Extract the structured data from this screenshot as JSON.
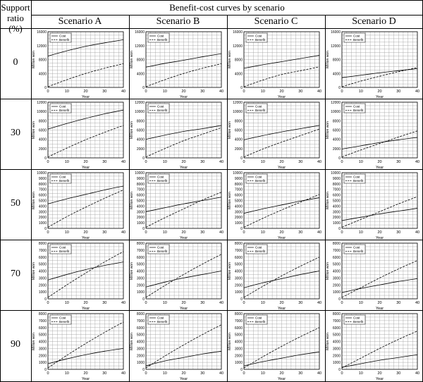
{
  "header": {
    "row_label_line1": "Support",
    "row_label_line2": "ratio (%)",
    "title": "Benefit-cost curves by scenario",
    "scenarios": [
      "Scenario A",
      "Scenario B",
      "Scenario C",
      "Scenario D"
    ]
  },
  "rows": [
    {
      "ratio": "0"
    },
    {
      "ratio": "30"
    },
    {
      "ratio": "50"
    },
    {
      "ratio": "70"
    },
    {
      "ratio": "90"
    }
  ],
  "axis_labels": {
    "xlabel": "Year",
    "ylabel": "Million won"
  },
  "legend": {
    "cost": "Cost",
    "benefit": "Benefit"
  },
  "colors": {
    "line": "#000000",
    "grid": "#9a9a9a",
    "border": "#000000"
  },
  "chart_data": [
    {
      "type": "line",
      "row": "0",
      "scenario": "Scenario A",
      "xlim": [
        0,
        40
      ],
      "ylim": [
        0,
        16000
      ],
      "x": [
        0,
        10,
        20,
        30,
        40
      ],
      "series": [
        {
          "name": "Cost",
          "values": [
            9000,
            10500,
            11800,
            12800,
            13700
          ]
        },
        {
          "name": "Benefit",
          "values": [
            200,
            2200,
            4000,
            5500,
            6800
          ]
        }
      ],
      "xticks": [
        "0",
        "10",
        "20",
        "30",
        "40"
      ],
      "yticks": [
        "0",
        "4000",
        "8000",
        "12000",
        "16000"
      ],
      "legend": "top-left"
    },
    {
      "type": "line",
      "row": "0",
      "scenario": "Scenario B",
      "xlim": [
        0,
        40
      ],
      "ylim": [
        0,
        16000
      ],
      "x": [
        0,
        10,
        20,
        30,
        40
      ],
      "series": [
        {
          "name": "Cost",
          "values": [
            5800,
            6900,
            7800,
            8800,
            9700
          ]
        },
        {
          "name": "Benefit",
          "values": [
            200,
            2200,
            4000,
            5500,
            6800
          ]
        }
      ],
      "xticks": [
        "0",
        "10",
        "20",
        "30",
        "40"
      ],
      "yticks": [
        "0",
        "4000",
        "8000",
        "12000",
        "16000"
      ],
      "legend": "top-left"
    },
    {
      "type": "line",
      "row": "0",
      "scenario": "Scenario C",
      "xlim": [
        0,
        40
      ],
      "ylim": [
        0,
        16000
      ],
      "x": [
        0,
        10,
        20,
        30,
        40
      ],
      "series": [
        {
          "name": "Cost",
          "values": [
            5500,
            6500,
            7400,
            8300,
            9200
          ]
        },
        {
          "name": "Benefit",
          "values": [
            200,
            2100,
            3700,
            4800,
            5900
          ]
        }
      ],
      "xticks": [
        "0",
        "10",
        "20",
        "30",
        "40"
      ],
      "yticks": [
        "0",
        "4000",
        "8000",
        "12000",
        "16000"
      ],
      "legend": "top-left"
    },
    {
      "type": "line",
      "row": "0",
      "scenario": "Scenario D",
      "xlim": [
        0,
        40
      ],
      "ylim": [
        0,
        16000
      ],
      "x": [
        0,
        10,
        20,
        30,
        40
      ],
      "series": [
        {
          "name": "Cost",
          "values": [
            2800,
            3500,
            4200,
            4800,
            5400
          ]
        },
        {
          "name": "Benefit",
          "values": [
            200,
            1800,
            3200,
            4500,
            5700
          ]
        }
      ],
      "xticks": [
        "0",
        "10",
        "20",
        "30",
        "40"
      ],
      "yticks": [
        "0",
        "4000",
        "8000",
        "12000",
        "16000"
      ],
      "legend": "top-left"
    },
    {
      "type": "line",
      "row": "30",
      "scenario": "Scenario A",
      "xlim": [
        0,
        40
      ],
      "ylim": [
        0,
        12000
      ],
      "x": [
        0,
        10,
        20,
        30,
        40
      ],
      "series": [
        {
          "name": "Cost",
          "values": [
            6200,
            7400,
            8500,
            9500,
            10300
          ]
        },
        {
          "name": "Benefit",
          "values": [
            200,
            2100,
            3900,
            5500,
            7000
          ]
        }
      ],
      "xticks": [
        "0",
        "10",
        "20",
        "30",
        "40"
      ],
      "yticks": [
        "0",
        "2000",
        "4000",
        "6000",
        "8000",
        "10000",
        "12000"
      ],
      "legend": "top-left"
    },
    {
      "type": "line",
      "row": "30",
      "scenario": "Scenario B",
      "xlim": [
        0,
        40
      ],
      "ylim": [
        0,
        12000
      ],
      "x": [
        0,
        10,
        20,
        30,
        40
      ],
      "series": [
        {
          "name": "Cost",
          "values": [
            4000,
            4900,
            5700,
            6300,
            7000
          ]
        },
        {
          "name": "Benefit",
          "values": [
            200,
            2000,
            3700,
            5100,
            6500
          ]
        }
      ],
      "xticks": [
        "0",
        "10",
        "20",
        "30",
        "40"
      ],
      "yticks": [
        "0",
        "2000",
        "4000",
        "6000",
        "8000",
        "10000",
        "12000"
      ],
      "legend": "top-left"
    },
    {
      "type": "line",
      "row": "30",
      "scenario": "Scenario C",
      "xlim": [
        0,
        40
      ],
      "ylim": [
        0,
        12000
      ],
      "x": [
        0,
        10,
        20,
        30,
        40
      ],
      "series": [
        {
          "name": "Cost",
          "values": [
            3900,
            4800,
            5600,
            6300,
            7000
          ]
        },
        {
          "name": "Benefit",
          "values": [
            200,
            1900,
            3400,
            4800,
            6200
          ]
        }
      ],
      "xticks": [
        "0",
        "10",
        "20",
        "30",
        "40"
      ],
      "yticks": [
        "0",
        "2000",
        "4000",
        "6000",
        "8000",
        "10000",
        "12000"
      ],
      "legend": "top-left"
    },
    {
      "type": "line",
      "row": "30",
      "scenario": "Scenario D",
      "xlim": [
        0,
        40
      ],
      "ylim": [
        0,
        12000
      ],
      "x": [
        0,
        10,
        20,
        30,
        40
      ],
      "series": [
        {
          "name": "Cost",
          "values": [
            1900,
            2600,
            3300,
            3900,
            4400
          ]
        },
        {
          "name": "Benefit",
          "values": [
            200,
            1700,
            3100,
            4500,
            5800
          ]
        }
      ],
      "xticks": [
        "0",
        "10",
        "20",
        "30",
        "40"
      ],
      "yticks": [
        "0",
        "2000",
        "4000",
        "6000",
        "8000",
        "10000",
        "12000"
      ],
      "legend": "top-left"
    },
    {
      "type": "line",
      "row": "50",
      "scenario": "Scenario A",
      "xlim": [
        0,
        40
      ],
      "ylim": [
        0,
        10000
      ],
      "x": [
        0,
        10,
        20,
        30,
        40
      ],
      "series": [
        {
          "name": "Cost",
          "values": [
            4400,
            5300,
            6100,
            6900,
            7600
          ]
        },
        {
          "name": "Benefit",
          "values": [
            200,
            2100,
            3800,
            5400,
            6900
          ]
        }
      ],
      "xticks": [
        "0",
        "10",
        "20",
        "30",
        "40"
      ],
      "yticks": [
        "0",
        "1000",
        "2000",
        "3000",
        "4000",
        "5000",
        "6000",
        "7000",
        "8000",
        "9000",
        "10000"
      ],
      "legend": "top-left"
    },
    {
      "type": "line",
      "row": "50",
      "scenario": "Scenario B",
      "xlim": [
        0,
        40
      ],
      "ylim": [
        0,
        10000
      ],
      "x": [
        0,
        10,
        20,
        30,
        40
      ],
      "series": [
        {
          "name": "Cost",
          "values": [
            3000,
            3700,
            4400,
            5000,
            5600
          ]
        },
        {
          "name": "Benefit",
          "values": [
            200,
            1900,
            3500,
            5100,
            6500
          ]
        }
      ],
      "xticks": [
        "0",
        "10",
        "20",
        "30",
        "40"
      ],
      "yticks": [
        "0",
        "1000",
        "2000",
        "3000",
        "4000",
        "5000",
        "6000",
        "7000",
        "8000",
        "9000",
        "10000"
      ],
      "legend": "top-left"
    },
    {
      "type": "line",
      "row": "50",
      "scenario": "Scenario C",
      "xlim": [
        0,
        40
      ],
      "ylim": [
        0,
        10000
      ],
      "x": [
        0,
        10,
        20,
        30,
        40
      ],
      "series": [
        {
          "name": "Cost",
          "values": [
            2700,
            3500,
            4200,
            4900,
            5500
          ]
        },
        {
          "name": "Benefit",
          "values": [
            200,
            1800,
            3300,
            4700,
            6100
          ]
        }
      ],
      "xticks": [
        "0",
        "10",
        "20",
        "30",
        "40"
      ],
      "yticks": [
        "0",
        "1000",
        "2000",
        "3000",
        "4000",
        "5000",
        "6000",
        "7000",
        "8000",
        "9000",
        "10000"
      ],
      "legend": "top-left"
    },
    {
      "type": "line",
      "row": "50",
      "scenario": "Scenario D",
      "xlim": [
        0,
        40
      ],
      "ylim": [
        0,
        10000
      ],
      "x": [
        0,
        10,
        20,
        30,
        40
      ],
      "series": [
        {
          "name": "Cost",
          "values": [
            1400,
            2000,
            2600,
            3100,
            3600
          ]
        },
        {
          "name": "Benefit",
          "values": [
            200,
            1600,
            3000,
            4400,
            5700
          ]
        }
      ],
      "xticks": [
        "0",
        "10",
        "20",
        "30",
        "40"
      ],
      "yticks": [
        "0",
        "1000",
        "2000",
        "3000",
        "4000",
        "5000",
        "6000",
        "7000",
        "8000",
        "9000",
        "10000"
      ],
      "legend": "top-left"
    },
    {
      "type": "line",
      "row": "70",
      "scenario": "Scenario A",
      "xlim": [
        0,
        40
      ],
      "ylim": [
        0,
        8000
      ],
      "x": [
        0,
        10,
        20,
        30,
        40
      ],
      "series": [
        {
          "name": "Cost",
          "values": [
            2700,
            3500,
            4200,
            4800,
            5300
          ]
        },
        {
          "name": "Benefit",
          "values": [
            200,
            2000,
            3700,
            5300,
            6800
          ]
        }
      ],
      "xticks": [
        "0",
        "10",
        "20",
        "30",
        "40"
      ],
      "yticks": [
        "0",
        "1000",
        "2000",
        "3000",
        "4000",
        "5000",
        "6000",
        "7000",
        "8000"
      ],
      "legend": "top-left"
    },
    {
      "type": "line",
      "row": "70",
      "scenario": "Scenario B",
      "xlim": [
        0,
        40
      ],
      "ylim": [
        0,
        8000
      ],
      "x": [
        0,
        10,
        20,
        30,
        40
      ],
      "series": [
        {
          "name": "Cost",
          "values": [
            1700,
            2400,
            3000,
            3500,
            4000
          ]
        },
        {
          "name": "Benefit",
          "values": [
            200,
            1900,
            3500,
            5000,
            6400
          ]
        }
      ],
      "xticks": [
        "0",
        "10",
        "20",
        "30",
        "40"
      ],
      "yticks": [
        "0",
        "1000",
        "2000",
        "3000",
        "4000",
        "5000",
        "6000",
        "7000",
        "8000"
      ],
      "legend": "top-left"
    },
    {
      "type": "line",
      "row": "70",
      "scenario": "Scenario C",
      "xlim": [
        0,
        40
      ],
      "ylim": [
        0,
        8000
      ],
      "x": [
        0,
        10,
        20,
        30,
        40
      ],
      "series": [
        {
          "name": "Cost",
          "values": [
            1600,
            2300,
            2900,
            3500,
            4000
          ]
        },
        {
          "name": "Benefit",
          "values": [
            200,
            1800,
            3300,
            4700,
            6000
          ]
        }
      ],
      "xticks": [
        "0",
        "10",
        "20",
        "30",
        "40"
      ],
      "yticks": [
        "0",
        "1000",
        "2000",
        "3000",
        "4000",
        "5000",
        "6000",
        "7000",
        "8000"
      ],
      "legend": "top-left"
    },
    {
      "type": "line",
      "row": "70",
      "scenario": "Scenario D",
      "xlim": [
        0,
        40
      ],
      "ylim": [
        0,
        8000
      ],
      "x": [
        0,
        10,
        20,
        30,
        40
      ],
      "series": [
        {
          "name": "Cost",
          "values": [
            900,
            1500,
            2000,
            2500,
            2900
          ]
        },
        {
          "name": "Benefit",
          "values": [
            200,
            1600,
            3000,
            4300,
            5500
          ]
        }
      ],
      "xticks": [
        "0",
        "10",
        "20",
        "30",
        "40"
      ],
      "yticks": [
        "0",
        "1000",
        "2000",
        "3000",
        "4000",
        "5000",
        "6000",
        "7000",
        "8000"
      ],
      "legend": "top-left"
    },
    {
      "type": "line",
      "row": "90",
      "scenario": "Scenario A",
      "xlim": [
        0,
        40
      ],
      "ylim": [
        0,
        8000
      ],
      "x": [
        0,
        10,
        20,
        30,
        40
      ],
      "series": [
        {
          "name": "Cost",
          "values": [
            800,
            1500,
            2100,
            2600,
            3000
          ]
        },
        {
          "name": "Benefit",
          "values": [
            200,
            2000,
            3700,
            5300,
            6800
          ]
        }
      ],
      "xticks": [
        "0",
        "10",
        "20",
        "30",
        "40"
      ],
      "yticks": [
        "0",
        "1000",
        "2000",
        "3000",
        "4000",
        "5000",
        "6000",
        "7000",
        "8000"
      ],
      "legend": "top-left"
    },
    {
      "type": "line",
      "row": "90",
      "scenario": "Scenario B",
      "xlim": [
        0,
        40
      ],
      "ylim": [
        0,
        8000
      ],
      "x": [
        0,
        10,
        20,
        30,
        40
      ],
      "series": [
        {
          "name": "Cost",
          "values": [
            500,
            1200,
            1700,
            2200,
            2600
          ]
        },
        {
          "name": "Benefit",
          "values": [
            200,
            1900,
            3500,
            5000,
            6400
          ]
        }
      ],
      "xticks": [
        "0",
        "10",
        "20",
        "30",
        "40"
      ],
      "yticks": [
        "0",
        "1000",
        "2000",
        "3000",
        "4000",
        "5000",
        "6000",
        "7000",
        "8000"
      ],
      "legend": "top-left"
    },
    {
      "type": "line",
      "row": "90",
      "scenario": "Scenario C",
      "xlim": [
        0,
        40
      ],
      "ylim": [
        0,
        8000
      ],
      "x": [
        0,
        10,
        20,
        30,
        40
      ],
      "series": [
        {
          "name": "Cost",
          "values": [
            500,
            1100,
            1600,
            2100,
            2500
          ]
        },
        {
          "name": "Benefit",
          "values": [
            200,
            1800,
            3300,
            4700,
            6000
          ]
        }
      ],
      "xticks": [
        "0",
        "10",
        "20",
        "30",
        "40"
      ],
      "yticks": [
        "0",
        "1000",
        "2000",
        "3000",
        "4000",
        "5000",
        "6000",
        "7000",
        "8000"
      ],
      "legend": "top-left"
    },
    {
      "type": "line",
      "row": "90",
      "scenario": "Scenario D",
      "xlim": [
        0,
        40
      ],
      "ylim": [
        0,
        8000
      ],
      "x": [
        0,
        10,
        20,
        30,
        40
      ],
      "series": [
        {
          "name": "Cost",
          "values": [
            300,
            800,
            1300,
            1700,
            2100
          ]
        },
        {
          "name": "Benefit",
          "values": [
            200,
            1600,
            3000,
            4300,
            5500
          ]
        }
      ],
      "xticks": [
        "0",
        "10",
        "20",
        "30",
        "40"
      ],
      "yticks": [
        "0",
        "1000",
        "2000",
        "3000",
        "4000",
        "5000",
        "6000",
        "7000",
        "8000"
      ],
      "legend": "top-left"
    }
  ]
}
